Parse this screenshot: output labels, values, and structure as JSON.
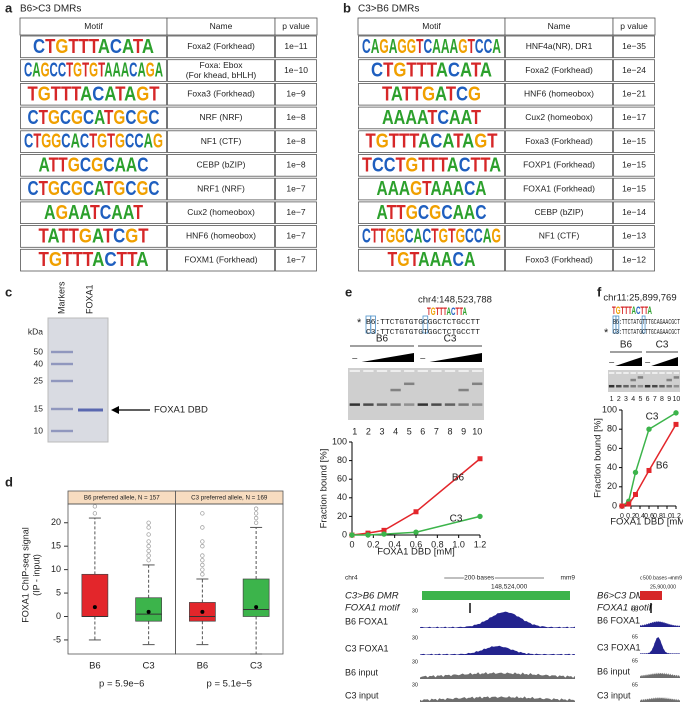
{
  "panel_a": {
    "label": "a",
    "title": "B6>C3 DMRs",
    "header": [
      "Motif",
      "Name",
      "p value"
    ],
    "rows": [
      {
        "motif": "CTGTTTACATA",
        "name": "Foxa2 (Forkhead)",
        "p": "1e−11"
      },
      {
        "motif": "CAGCCTGTGTAAACAGA",
        "name": [
          "Foxa: Ebox",
          "(For khead, bHLH)"
        ],
        "p": "1e−10"
      },
      {
        "motif": "TGTTTACATAGT",
        "name": "Foxa3 (Forkhead)",
        "p": "1e−9"
      },
      {
        "motif": "CTGCGCATGCGC",
        "name": "NRF (NRF)",
        "p": "1e−8"
      },
      {
        "motif": "CTGGCACTGTGCCAG",
        "name": "NF1 (CTF)",
        "p": "1e−8"
      },
      {
        "motif": "ATTGCGCAAC",
        "name": "CEBP (bZIP)",
        "p": "1e−8"
      },
      {
        "motif": "CTGCGCATGCGC",
        "name": "NRF1 (NRF)",
        "p": "1e−7"
      },
      {
        "motif": "AGAATCAAT",
        "name": "Cux2 (homeobox)",
        "p": "1e−7"
      },
      {
        "motif": "TATTGATCGT",
        "name": "HNF6 (homeobox)",
        "p": "1e−7"
      },
      {
        "motif": "TGTTTACTTA",
        "name": "FOXM1 (Forkhead)",
        "p": "1e−7"
      }
    ]
  },
  "panel_b": {
    "label": "b",
    "title": "C3>B6 DMRs",
    "header": [
      "Motif",
      "Name",
      "p value"
    ],
    "rows": [
      {
        "motif": "CAGAGGTCAAAGTCCA",
        "name": "HNF4a(NR), DR1",
        "p": "1e−35"
      },
      {
        "motif": "CTGTTTACATA",
        "name": "Foxa2 (Forkhead)",
        "p": "1e−24"
      },
      {
        "motif": "TATTGATCG",
        "name": "HNF6 (homeobox)",
        "p": "1e−21"
      },
      {
        "motif": "AAAATCAAT",
        "name": "Cux2 (homeobox)",
        "p": "1e−17"
      },
      {
        "motif": "TGTTTACATAGT",
        "name": "Foxa3 (Forkhead)",
        "p": "1e−15"
      },
      {
        "motif": "TCCTGTTTACTTA",
        "name": "FOXP1 (Forkhead)",
        "p": "1e−15"
      },
      {
        "motif": "AAAGTAAACA",
        "name": "FOXA1 (Forkhead)",
        "p": "1e−15"
      },
      {
        "motif": "ATTGCGCAAC",
        "name": "CEBP (bZIP)",
        "p": "1e−14"
      },
      {
        "motif": "CTTGGCACTGTGCCAG",
        "name": "NF1 (CTF)",
        "p": "1e−13"
      },
      {
        "motif": "TGTAAACA",
        "name": "Foxo3 (Forkhead)",
        "p": "1e−12"
      }
    ]
  },
  "panel_c": {
    "label": "c",
    "lanes": [
      "Markers",
      "FOXA1"
    ],
    "unit": "kDa",
    "markers": [
      50,
      40,
      25,
      15,
      10
    ],
    "band": "FOXA1 DBD"
  },
  "chart_data": [
    {
      "type": "box",
      "panel": "d",
      "ylabel": [
        "FOXA1 ChIP-seq signal",
        "(IP - input)"
      ],
      "ylim": [
        -8,
        24
      ],
      "yticks": [
        -5,
        0,
        5,
        10,
        15,
        20
      ],
      "facets": [
        {
          "title": "B6 preferred allele, N = 157",
          "pvalue": "p = 5.9e−6",
          "groups": [
            {
              "name": "B6",
              "color": "#e3262b",
              "whislo": -5,
              "q1": 0,
              "med": 0,
              "q3": 9,
              "whishi": 21,
              "mean": 2,
              "fliers": [
                22,
                23.5
              ]
            },
            {
              "name": "C3",
              "color": "#3cb44b",
              "whislo": -6,
              "q1": -1,
              "med": 0.5,
              "q3": 4,
              "whishi": 11,
              "mean": 1,
              "fliers": [
                12,
                13,
                14,
                15,
                16,
                17.5,
                19,
                20
              ]
            }
          ]
        },
        {
          "title": "C3 preferred allele, N = 169",
          "pvalue": "p = 5.1e−5",
          "groups": [
            {
              "name": "B6",
              "color": "#e3262b",
              "whislo": -6,
              "q1": -1,
              "med": 0,
              "q3": 3,
              "whishi": 8,
              "mean": 1,
              "fliers": [
                9,
                10,
                11,
                12,
                13,
                15,
                16,
                19,
                22
              ]
            },
            {
              "name": "C3",
              "color": "#3cb44b",
              "whislo": -8,
              "q1": 0,
              "med": 1.5,
              "q3": 8,
              "whishi": 19,
              "mean": 2,
              "fliers": [
                20,
                21,
                22,
                23
              ]
            }
          ]
        }
      ]
    },
    {
      "type": "line",
      "panel": "e",
      "title": "chr4:148,523,788",
      "motif": "TGTTTACTTA",
      "sequences": [
        {
          "text": "B6:TTCTGTGTGCGGCTCTGCCTT",
          "color": "#e3262b",
          "mark": "*"
        },
        {
          "text": "C3:TTCTGTGTGTGGCTCTGCCTT",
          "color": "#3cb44b"
        }
      ],
      "groups": [
        {
          "name": "B6",
          "color": "#e3262b"
        },
        {
          "name": "C3",
          "color": "#3cb44b"
        }
      ],
      "blank": "–",
      "lanes": [
        1,
        2,
        3,
        4,
        5,
        6,
        7,
        8,
        9,
        10
      ],
      "x": [
        0,
        0.15,
        0.3,
        0.6,
        1.2
      ],
      "series": [
        {
          "name": "B6",
          "color": "#e3262b",
          "marker": "square",
          "values": [
            0,
            2,
            5,
            25,
            82
          ]
        },
        {
          "name": "C3",
          "color": "#3cb44b",
          "marker": "circle",
          "values": [
            0,
            0,
            1,
            3,
            20
          ]
        }
      ],
      "xlim": [
        0,
        1.2
      ],
      "xticks": [
        0,
        0.2,
        0.4,
        0.6,
        0.8,
        {
          "value": 1,
          "label": "1.0"
        },
        1.2
      ],
      "ylim": [
        0,
        100
      ],
      "yticks": [
        0,
        20,
        40,
        60,
        80,
        100
      ],
      "xlabel": "FOXA1 DBD [mM]",
      "ylabel": "Fraction bound [%]",
      "tracks": {
        "chrom": "chr4",
        "scale": "200 bases",
        "assembly": "mm9",
        "coord": "148,524,000",
        "dmr": "C3>B6 DMR",
        "dmr_color": "#3cb44b",
        "motif": "FOXA1 motif",
        "rows": [
          {
            "name": "B6 FOXA1",
            "max": 30
          },
          {
            "name": "C3 FOXA1",
            "max": 30
          },
          {
            "name": "B6 input",
            "max": 30
          },
          {
            "name": "C3 input",
            "max": 30
          }
        ]
      }
    },
    {
      "type": "line",
      "panel": "f",
      "title": "chr11:25,899,769",
      "motif": "TGTTTACTTA",
      "sequences": [
        {
          "text": "B6:TTCTATGTTTGCAGAACGCT",
          "color": "#e3262b"
        },
        {
          "text": "C3:TTCTATGCTTGCAGAACGCT",
          "color": "#3cb44b",
          "mark": "*"
        }
      ],
      "groups": [
        {
          "name": "B6",
          "color": "#e3262b"
        },
        {
          "name": "C3",
          "color": "#3cb44b"
        }
      ],
      "blank": "–",
      "lanes": [
        1,
        2,
        3,
        4,
        5,
        6,
        7,
        8,
        9,
        10
      ],
      "x": [
        0,
        0.15,
        0.3,
        0.6,
        1.2
      ],
      "series": [
        {
          "name": "C3",
          "color": "#3cb44b",
          "marker": "circle",
          "values": [
            0,
            5,
            35,
            80,
            97
          ]
        },
        {
          "name": "B6",
          "color": "#e3262b",
          "marker": "square",
          "values": [
            0,
            2,
            12,
            37,
            85
          ]
        }
      ],
      "xlim": [
        0,
        1.2
      ],
      "xticks": [
        0,
        0.2,
        0.4,
        0.6,
        0.8,
        {
          "value": 1,
          "label": "1.0"
        },
        1.2
      ],
      "ylim": [
        0,
        100
      ],
      "yticks": [
        0,
        20,
        40,
        60,
        80,
        100
      ],
      "xlabel": "FOXA1 DBD [mM]",
      "ylabel": "Fraction bound [%]",
      "tracks": {
        "chrom": "chr11",
        "scale": "500 bases",
        "assembly": "mm9",
        "coord": "25,900,000",
        "dmr": "B6>C3 DMR",
        "dmr_color": "#d62728",
        "motif": "FOXA1 motif",
        "rows": [
          {
            "name": "B6 FOXA1",
            "max": 65
          },
          {
            "name": "C3 FOXA1",
            "max": 65
          },
          {
            "name": "B6 input",
            "max": 65
          },
          {
            "name": "C3 input",
            "max": 65
          }
        ]
      }
    }
  ]
}
